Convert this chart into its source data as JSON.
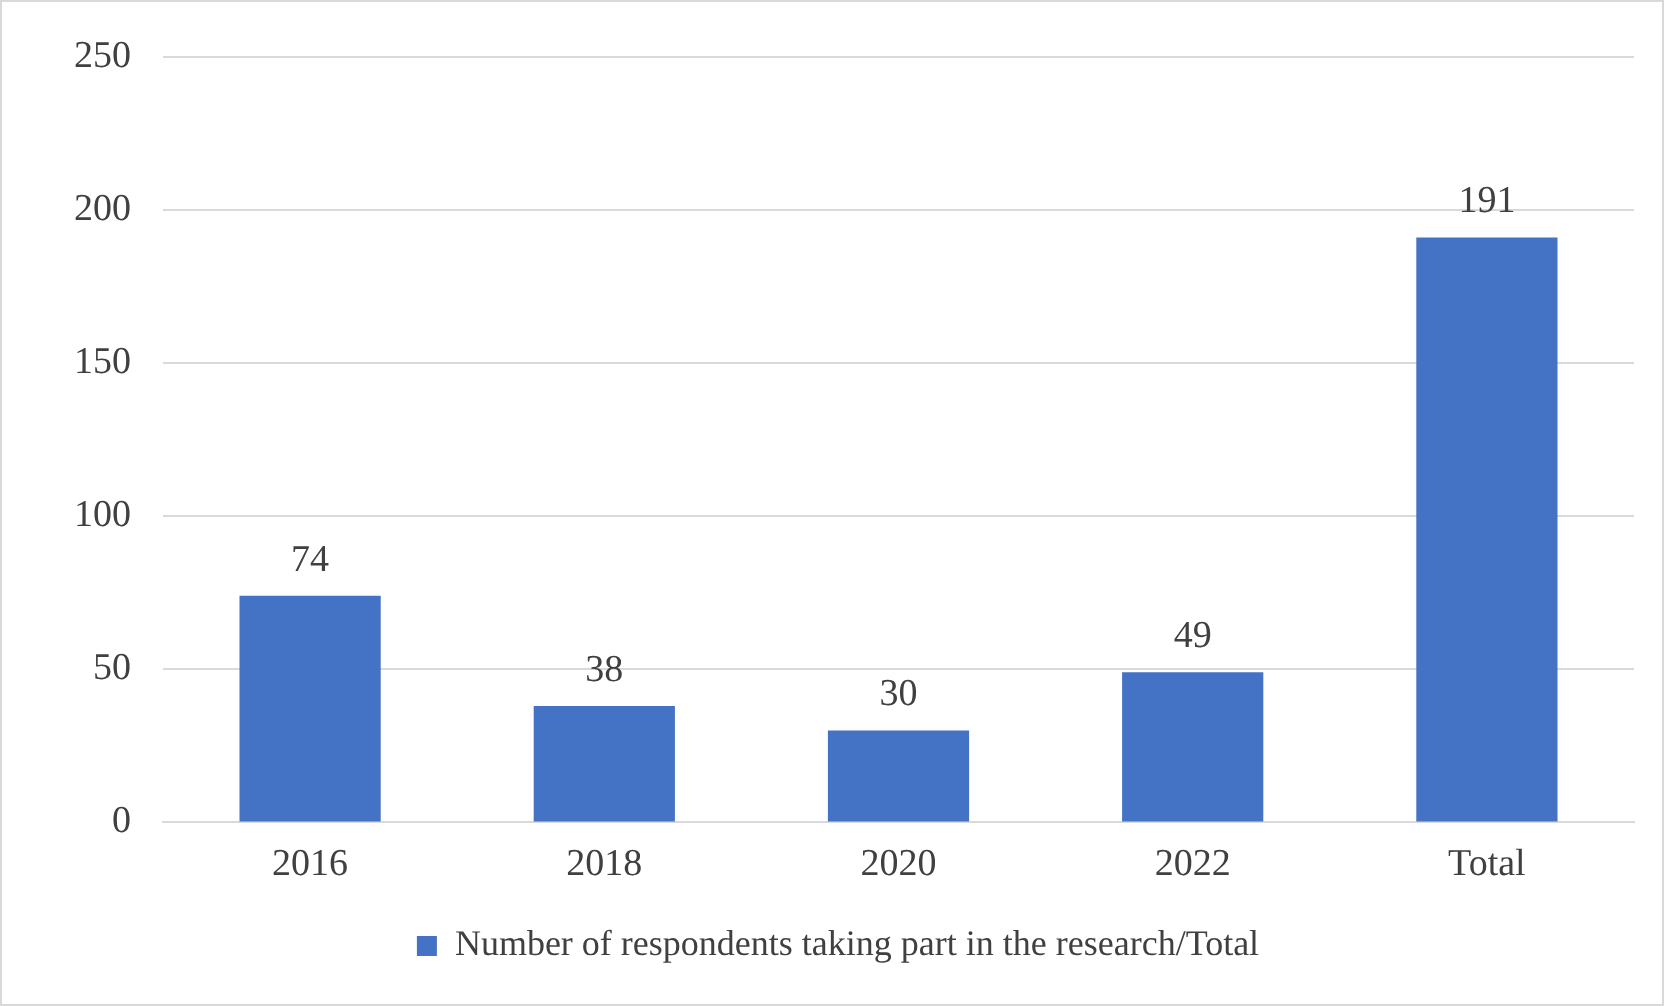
{
  "chart_data": {
    "type": "bar",
    "categories": [
      "2016",
      "2018",
      "2020",
      "2022",
      "Total"
    ],
    "series": [
      {
        "name": "Number of respondents taking part in the research/Total",
        "color": "#4472c4",
        "values": [
          74,
          38,
          30,
          49,
          191
        ]
      }
    ],
    "ylim": [
      0,
      250
    ],
    "yticks": [
      0,
      50,
      100,
      150,
      200,
      250
    ],
    "grid": "y",
    "legend": "bottom",
    "data_labels": true
  }
}
